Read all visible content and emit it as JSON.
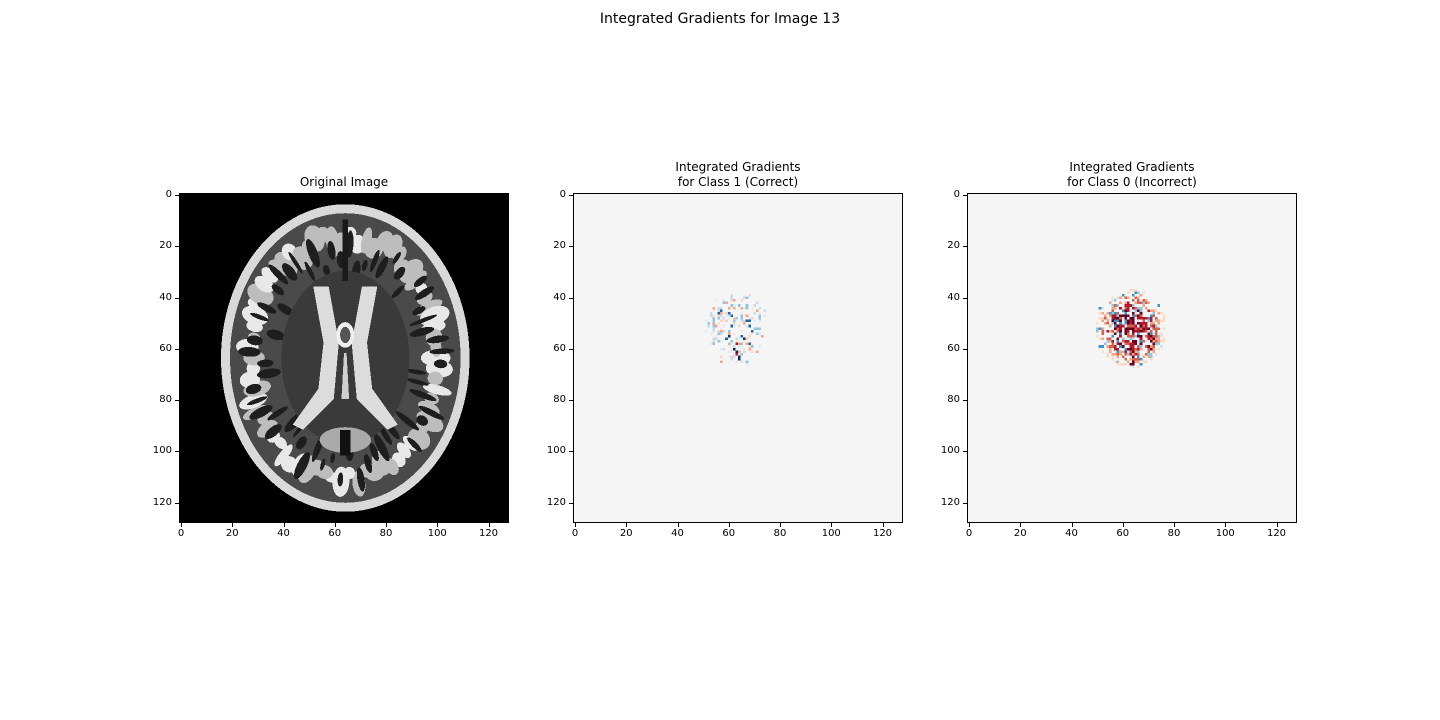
{
  "figure": {
    "title": "Integrated Gradients for Image 13"
  },
  "chart_data": [
    {
      "type": "heatmap",
      "title": "Original Image",
      "xlim": [
        0,
        128
      ],
      "ylim": [
        128,
        0
      ],
      "xticks": [
        0,
        20,
        40,
        60,
        80,
        100,
        120
      ],
      "yticks": [
        0,
        20,
        40,
        60,
        80,
        100,
        120
      ],
      "colormap": "gray",
      "content": "axial brain MRI slice, head ellipse centered near (64, 64)"
    },
    {
      "type": "heatmap",
      "title": "Integrated Gradients \n for Class 1 (Correct)",
      "xlim": [
        0,
        128
      ],
      "ylim": [
        128,
        0
      ],
      "xticks": [
        0,
        20,
        40,
        60,
        80,
        100,
        120
      ],
      "yticks": [
        0,
        20,
        40,
        60,
        80,
        100,
        120
      ],
      "colormap": "RdBu_r",
      "background_color": "#f5f5f5",
      "hot_region": {
        "x_range": [
          50,
          76
        ],
        "y_range": [
          37,
          67
        ],
        "intensity": "faint"
      }
    },
    {
      "type": "heatmap",
      "title": "Integrated Gradients \n for Class 0 (Incorrect)",
      "xlim": [
        0,
        128
      ],
      "ylim": [
        128,
        0
      ],
      "xticks": [
        0,
        20,
        40,
        60,
        80,
        100,
        120
      ],
      "yticks": [
        0,
        20,
        40,
        60,
        80,
        100,
        120
      ],
      "colormap": "RdBu_r",
      "background_color": "#f5f5f5",
      "hot_region": {
        "x_range": [
          49,
          77
        ],
        "y_range": [
          36,
          68
        ],
        "intensity": "strong"
      }
    }
  ]
}
